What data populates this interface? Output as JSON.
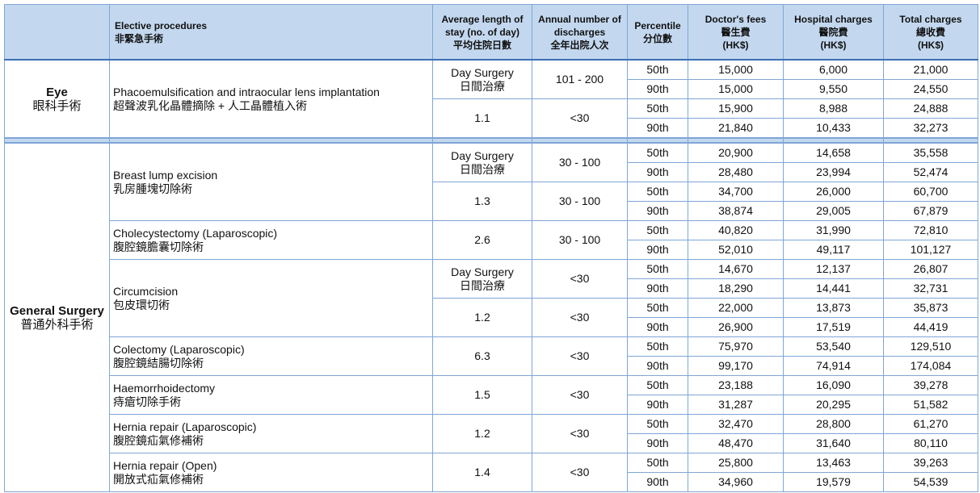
{
  "header": {
    "procedure_en": "Elective procedures",
    "procedure_zh": "非緊急手術",
    "stay_en": "Average length of stay (no. of day)",
    "stay_zh": "平均住院日數",
    "discharges_en": "Annual number of discharges",
    "discharges_zh": "全年出院人次",
    "percentile_en": "Percentile",
    "percentile_zh": "分位數",
    "doctor_en": "Doctor's fees",
    "doctor_zh": "醫生費",
    "doctor_unit": "(HK$)",
    "hospital_en": "Hospital charges",
    "hospital_zh": "醫院費",
    "hospital_unit": "(HK$)",
    "total_en": "Total charges",
    "total_zh": "總收費",
    "total_unit": "(HK$)"
  },
  "eye": {
    "cat_en": "Eye",
    "cat_zh": "眼科手術",
    "procedures": [
      {
        "name_en": "Phacoemulsification and intraocular lens implantation",
        "name_zh": "超聲波乳化晶體摘除 + 人工晶體植入術",
        "groups": [
          {
            "stay_en": "Day Surgery",
            "stay_zh": "日間治療",
            "discharges": "101 - 200",
            "rows": [
              {
                "pct": "50th",
                "doctor": "15,000",
                "hospital": "6,000",
                "total": "21,000"
              },
              {
                "pct": "90th",
                "doctor": "15,000",
                "hospital": "9,550",
                "total": "24,550"
              }
            ]
          },
          {
            "stay_en": "1.1",
            "stay_zh": "",
            "discharges": "<30",
            "rows": [
              {
                "pct": "50th",
                "doctor": "15,900",
                "hospital": "8,988",
                "total": "24,888"
              },
              {
                "pct": "90th",
                "doctor": "21,840",
                "hospital": "10,433",
                "total": "32,273"
              }
            ]
          }
        ]
      }
    ]
  },
  "general": {
    "cat_en": "General Surgery",
    "cat_zh": "普通外科手術",
    "procedures": [
      {
        "name_en": "Breast lump excision",
        "name_zh": "乳房腫塊切除術",
        "groups": [
          {
            "stay_en": "Day Surgery",
            "stay_zh": "日間治療",
            "discharges": "30 - 100",
            "rows": [
              {
                "pct": "50th",
                "doctor": "20,900",
                "hospital": "14,658",
                "total": "35,558"
              },
              {
                "pct": "90th",
                "doctor": "28,480",
                "hospital": "23,994",
                "total": "52,474"
              }
            ]
          },
          {
            "stay_en": "1.3",
            "stay_zh": "",
            "discharges": "30 - 100",
            "rows": [
              {
                "pct": "50th",
                "doctor": "34,700",
                "hospital": "26,000",
                "total": "60,700"
              },
              {
                "pct": "90th",
                "doctor": "38,874",
                "hospital": "29,005",
                "total": "67,879"
              }
            ]
          }
        ]
      },
      {
        "name_en": "Cholecystectomy (Laparoscopic)",
        "name_zh": "腹腔鏡膽囊切除術",
        "groups": [
          {
            "stay_en": "2.6",
            "stay_zh": "",
            "discharges": "30 - 100",
            "rows": [
              {
                "pct": "50th",
                "doctor": "40,820",
                "hospital": "31,990",
                "total": "72,810"
              },
              {
                "pct": "90th",
                "doctor": "52,010",
                "hospital": "49,117",
                "total": "101,127"
              }
            ]
          }
        ]
      },
      {
        "name_en": "Circumcision",
        "name_zh": "包皮環切術",
        "groups": [
          {
            "stay_en": "Day Surgery",
            "stay_zh": "日間治療",
            "discharges": "<30",
            "rows": [
              {
                "pct": "50th",
                "doctor": "14,670",
                "hospital": "12,137",
                "total": "26,807"
              },
              {
                "pct": "90th",
                "doctor": "18,290",
                "hospital": "14,441",
                "total": "32,731"
              }
            ]
          },
          {
            "stay_en": "1.2",
            "stay_zh": "",
            "discharges": "<30",
            "rows": [
              {
                "pct": "50th",
                "doctor": "22,000",
                "hospital": "13,873",
                "total": "35,873"
              },
              {
                "pct": "90th",
                "doctor": "26,900",
                "hospital": "17,519",
                "total": "44,419"
              }
            ]
          }
        ]
      },
      {
        "name_en": "Colectomy (Laparoscopic)",
        "name_zh": "腹腔鏡結腸切除術",
        "groups": [
          {
            "stay_en": "6.3",
            "stay_zh": "",
            "discharges": "<30",
            "rows": [
              {
                "pct": "50th",
                "doctor": "75,970",
                "hospital": "53,540",
                "total": "129,510"
              },
              {
                "pct": "90th",
                "doctor": "99,170",
                "hospital": "74,914",
                "total": "174,084"
              }
            ]
          }
        ]
      },
      {
        "name_en": "Haemorrhoidectomy",
        "name_zh": "痔瘡切除手術",
        "groups": [
          {
            "stay_en": "1.5",
            "stay_zh": "",
            "discharges": "<30",
            "rows": [
              {
                "pct": "50th",
                "doctor": "23,188",
                "hospital": "16,090",
                "total": "39,278"
              },
              {
                "pct": "90th",
                "doctor": "31,287",
                "hospital": "20,295",
                "total": "51,582"
              }
            ]
          }
        ]
      },
      {
        "name_en": "Hernia repair (Laparoscopic)",
        "name_zh": "腹腔鏡疝氣修補術",
        "groups": [
          {
            "stay_en": "1.2",
            "stay_zh": "",
            "discharges": "<30",
            "rows": [
              {
                "pct": "50th",
                "doctor": "32,470",
                "hospital": "28,800",
                "total": "61,270"
              },
              {
                "pct": "90th",
                "doctor": "48,470",
                "hospital": "31,640",
                "total": "80,110"
              }
            ]
          }
        ]
      },
      {
        "name_en": "Hernia repair (Open)",
        "name_zh": "開放式疝氣修補術",
        "groups": [
          {
            "stay_en": "1.4",
            "stay_zh": "",
            "discharges": "<30",
            "rows": [
              {
                "pct": "50th",
                "doctor": "25,800",
                "hospital": "13,463",
                "total": "39,263"
              },
              {
                "pct": "90th",
                "doctor": "34,960",
                "hospital": "19,579",
                "total": "54,539"
              }
            ]
          }
        ]
      }
    ]
  }
}
